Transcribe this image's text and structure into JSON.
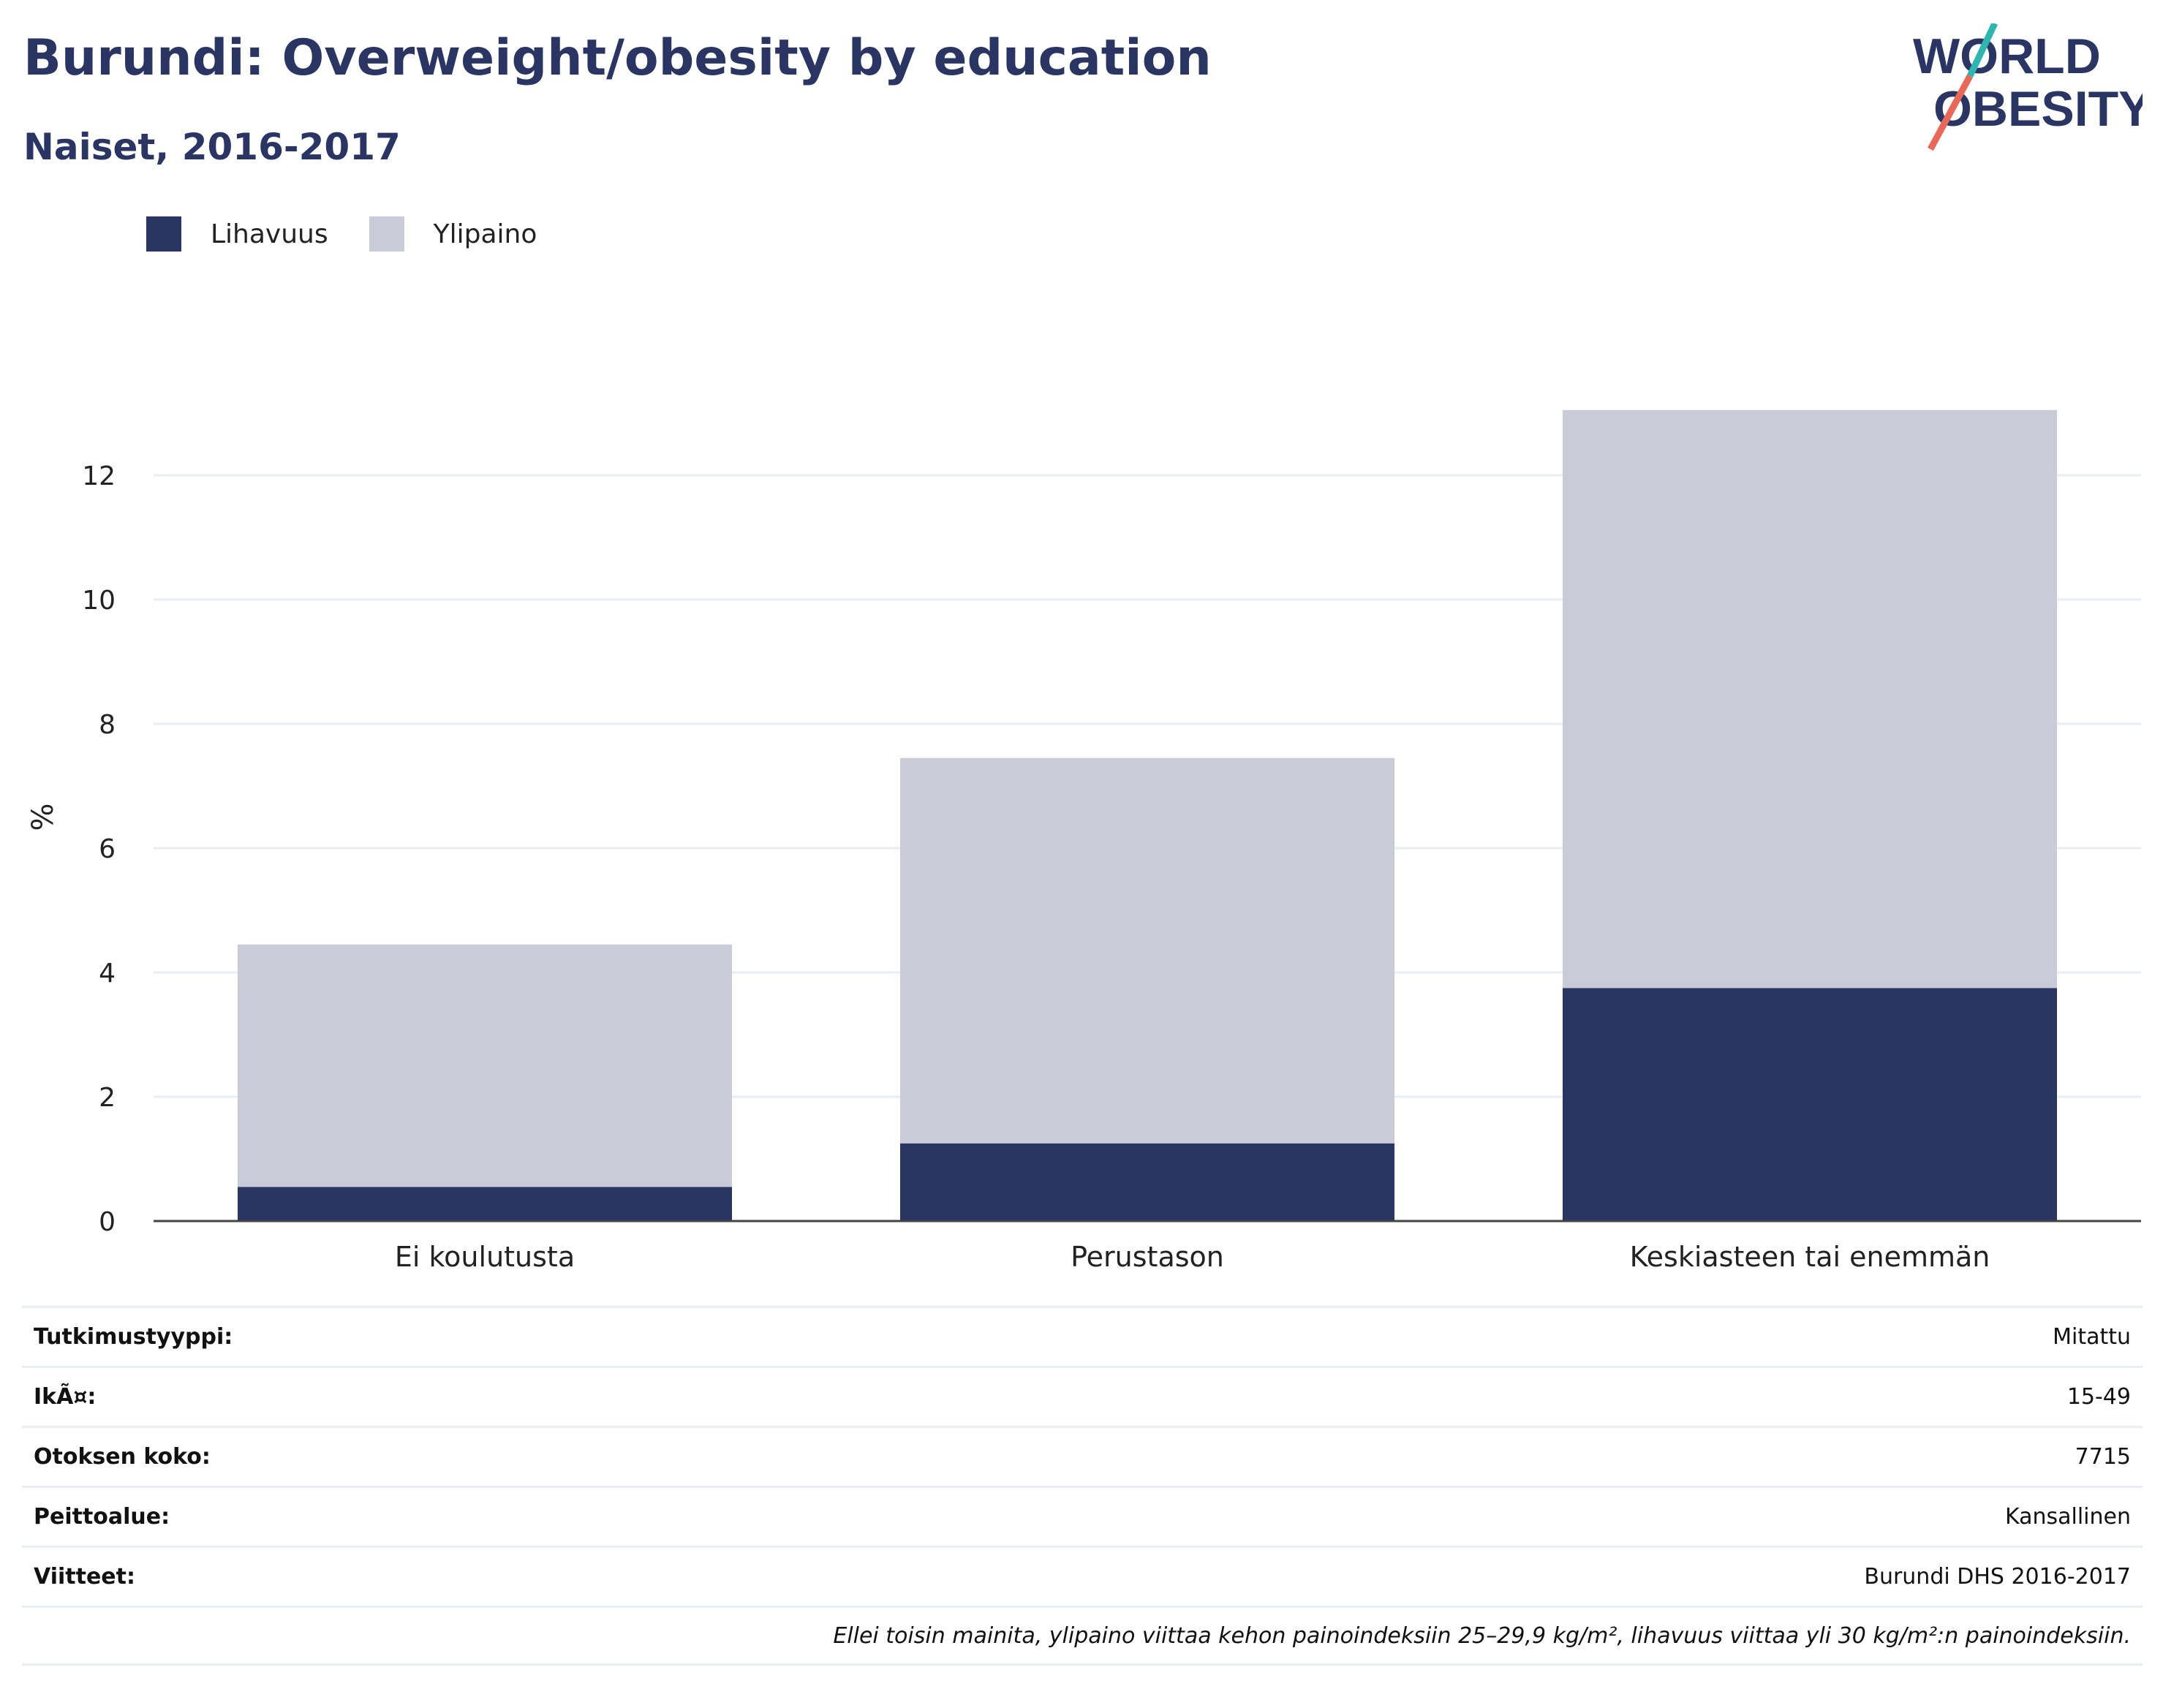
{
  "header": {
    "title": "Burundi: Overweight/obesity by education",
    "subtitle": "Naiset, 2016-2017"
  },
  "logo": {
    "line1": "WORLD",
    "line2": "OBESITY"
  },
  "colors": {
    "obesity": "#2a3563",
    "overweight": "#c9cbd6",
    "logo_slash_top": "#2fb6b0",
    "logo_slash_bottom": "#e8695a"
  },
  "legend": [
    {
      "label": "Lihavuus",
      "color": "#2a3563"
    },
    {
      "label": "Ylipaino",
      "color": "#c9cbd6"
    }
  ],
  "chart_data": {
    "type": "bar",
    "stacked": true,
    "categories": [
      "Ei koulutusta",
      "Perustason",
      "Keskiasteen tai enemmän"
    ],
    "series": [
      {
        "name": "Lihavuus",
        "values": [
          0.55,
          1.25,
          3.75
        ],
        "color": "#2a3563"
      },
      {
        "name": "Ylipaino",
        "values": [
          3.9,
          6.2,
          9.3
        ],
        "color": "#c9cbd6"
      }
    ],
    "ylabel": "%",
    "yticks": [
      "0",
      "2",
      "4",
      "6",
      "8",
      "10",
      "12"
    ],
    "ylim": [
      0,
      13.1
    ],
    "grid": true,
    "legend_position": "top-left"
  },
  "info": [
    {
      "key": "Tutkimustyyppi:",
      "value": "Mitattu"
    },
    {
      "key": "IkÃ¤:",
      "value": "15-49"
    },
    {
      "key": "Otoksen koko:",
      "value": "7715"
    },
    {
      "key": "Peittoalue:",
      "value": "Kansallinen"
    },
    {
      "key": "Viitteet:",
      "value": "Burundi DHS 2016-2017"
    }
  ],
  "note": "Ellei toisin mainita, ylipaino viittaa kehon painoindeksiin 25–29,9 kg/m², lihavuus viittaa yli 30 kg/m²:n painoindeksiin."
}
